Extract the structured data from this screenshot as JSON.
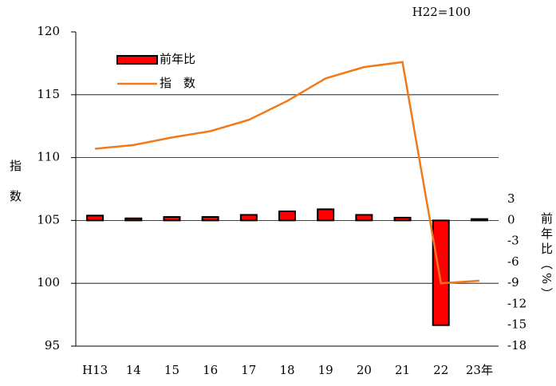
{
  "chart_data": {
    "type": "bar-line",
    "annotation": "H22=100",
    "y_label": "指　数",
    "y2_label": "前年比（%）",
    "categories": [
      "H13",
      "14",
      "15",
      "16",
      "17",
      "18",
      "19",
      "20",
      "21",
      "22",
      "23年"
    ],
    "series": [
      {
        "name": "前年比",
        "type": "bar",
        "axis": "y2",
        "color": "#ff0000",
        "values": [
          0.7,
          0.3,
          0.5,
          0.5,
          0.8,
          1.3,
          1.6,
          0.8,
          0.4,
          -15.0,
          0.2
        ]
      },
      {
        "name": "指　数",
        "type": "line",
        "axis": "y",
        "color": "#f07a1a",
        "values": [
          110.7,
          111.0,
          111.6,
          112.1,
          113.0,
          114.5,
          116.3,
          117.2,
          117.6,
          100.0,
          100.2
        ]
      }
    ],
    "ylim": [
      95,
      120
    ],
    "yticks": [
      95,
      100,
      105,
      110,
      115,
      120
    ],
    "y2lim": [
      -18,
      27
    ],
    "y2ticks": [
      -18,
      -15,
      -12,
      -9,
      -6,
      -3,
      0,
      3
    ],
    "grid": true
  }
}
